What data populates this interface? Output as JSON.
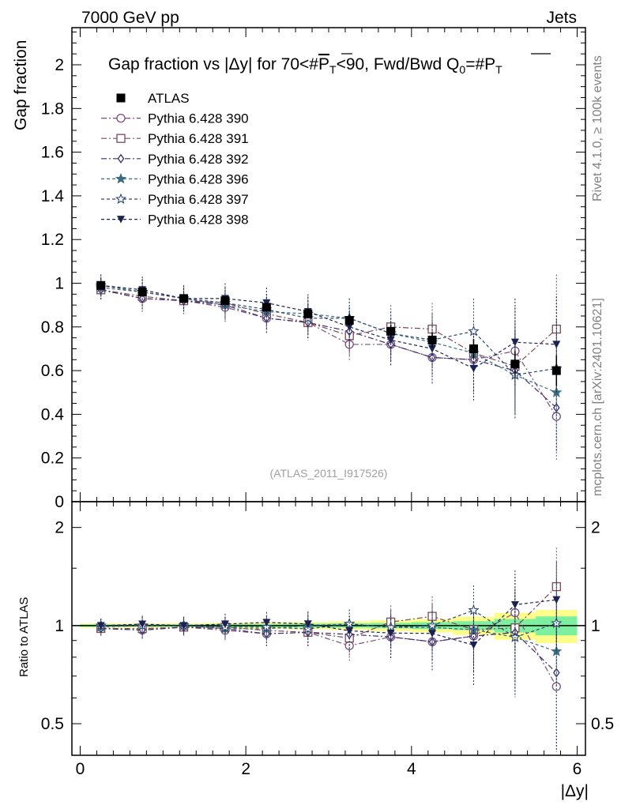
{
  "header": {
    "energy": "7000 GeV pp",
    "process": "Jets",
    "rivet": "Rivet 4.1.0, ≥ 100k events",
    "mcplots": "mcplots.cern.ch [arXiv:2401.10621]",
    "analysis": "(ATLAS_2011_I917526)"
  },
  "chart_data": {
    "type": "scatter",
    "title": "Gap fraction vs |Δy| for 70<#P̅T<90, Fwd/Bwd Q0=#P̅T",
    "title_parts": {
      "a": "Gap fraction vs |Δy| for 70<#",
      "p": "P",
      "t": "T",
      "b": "<90, Fwd/Bwd Q",
      "zero": "0",
      "c": "=#"
    },
    "xlabel": "|Δy|",
    "ylabel": "Gap fraction",
    "ratio_ylabel": "Ratio to ATLAS",
    "xlim": [
      -0.1,
      6.1
    ],
    "ylim": [
      0,
      2.17
    ],
    "ratio_ylim": [
      0.4,
      2.4
    ],
    "ratio_scale": "log",
    "x_ticks": [
      "0",
      "2",
      "4",
      "6"
    ],
    "y_ticks": [
      "0.2",
      "0.4",
      "0.6",
      "0.8",
      "1",
      "1.2",
      "1.4",
      "1.6",
      "1.8",
      "2"
    ],
    "ratio_ticks": [
      "0.5",
      "1",
      "2"
    ],
    "x": [
      0.25,
      0.75,
      1.25,
      1.75,
      2.25,
      2.75,
      3.25,
      3.75,
      4.25,
      4.75,
      5.25,
      5.75
    ],
    "data": {
      "name": "ATLAS",
      "values": [
        0.99,
        0.96,
        0.93,
        0.92,
        0.89,
        0.86,
        0.83,
        0.78,
        0.74,
        0.7,
        0.63,
        0.6
      ],
      "errors": [
        0.015,
        0.015,
        0.015,
        0.018,
        0.02,
        0.022,
        0.025,
        0.03,
        0.035,
        0.045,
        0.06,
        0.07
      ],
      "stat": [
        0.008,
        0.008,
        0.008,
        0.01,
        0.01,
        0.012,
        0.013,
        0.015,
        0.018,
        0.022,
        0.03,
        0.04
      ]
    },
    "series": [
      {
        "name": "Pythia 6.428 390",
        "color": "#7a4e7e",
        "marker": "circle-open",
        "dash": "7,3,2,3",
        "values": [
          0.97,
          0.93,
          0.92,
          0.89,
          0.84,
          0.82,
          0.72,
          0.72,
          0.66,
          0.65,
          0.69,
          0.39
        ],
        "errors": [
          0.05,
          0.06,
          0.06,
          0.07,
          0.07,
          0.08,
          0.08,
          0.1,
          0.12,
          0.15,
          0.2,
          0.2
        ]
      },
      {
        "name": "Pythia 6.428 391",
        "color": "#7d4a58",
        "marker": "square-open",
        "dash": "7,3,2,3",
        "values": [
          0.97,
          0.94,
          0.92,
          0.91,
          0.86,
          0.82,
          0.76,
          0.8,
          0.79,
          0.68,
          0.62,
          0.79
        ],
        "errors": [
          0.05,
          0.06,
          0.06,
          0.07,
          0.07,
          0.08,
          0.09,
          0.1,
          0.12,
          0.15,
          0.2,
          0.25
        ]
      },
      {
        "name": "Pythia 6.428 392",
        "color": "#3b2e6b",
        "marker": "diamond-open",
        "dash": "7,3,2,3",
        "values": [
          0.97,
          0.93,
          0.92,
          0.9,
          0.84,
          0.82,
          0.78,
          0.72,
          0.66,
          0.65,
          0.6,
          0.43
        ],
        "errors": [
          0.05,
          0.06,
          0.06,
          0.07,
          0.07,
          0.08,
          0.09,
          0.1,
          0.12,
          0.15,
          0.2,
          0.2
        ]
      },
      {
        "name": "Pythia 6.428 396",
        "color": "#3d6e80",
        "marker": "star-filled",
        "dash": "4,3",
        "values": [
          0.98,
          0.96,
          0.93,
          0.9,
          0.87,
          0.86,
          0.84,
          0.77,
          0.73,
          0.68,
          0.58,
          0.5
        ],
        "errors": [
          0.05,
          0.06,
          0.06,
          0.07,
          0.07,
          0.08,
          0.09,
          0.1,
          0.12,
          0.15,
          0.2,
          0.22
        ]
      },
      {
        "name": "Pythia 6.428 397",
        "color": "#2e4a72",
        "marker": "star-open",
        "dash": "4,3",
        "values": [
          0.99,
          0.96,
          0.93,
          0.91,
          0.88,
          0.84,
          0.84,
          0.77,
          0.74,
          0.78,
          0.58,
          0.61
        ],
        "errors": [
          0.05,
          0.06,
          0.06,
          0.07,
          0.07,
          0.08,
          0.09,
          0.1,
          0.12,
          0.15,
          0.2,
          0.22
        ]
      },
      {
        "name": "Pythia 6.428 398",
        "color": "#1c2250",
        "marker": "tri-down-filled",
        "dash": "4,3",
        "values": [
          0.99,
          0.97,
          0.93,
          0.93,
          0.91,
          0.87,
          0.8,
          0.74,
          0.7,
          0.61,
          0.73,
          0.72
        ],
        "errors": [
          0.05,
          0.06,
          0.06,
          0.07,
          0.07,
          0.08,
          0.09,
          0.1,
          0.12,
          0.15,
          0.2,
          0.22
        ]
      }
    ],
    "band_colors": {
      "total": "#fdfd8a",
      "stat": "#7df0a0"
    }
  }
}
